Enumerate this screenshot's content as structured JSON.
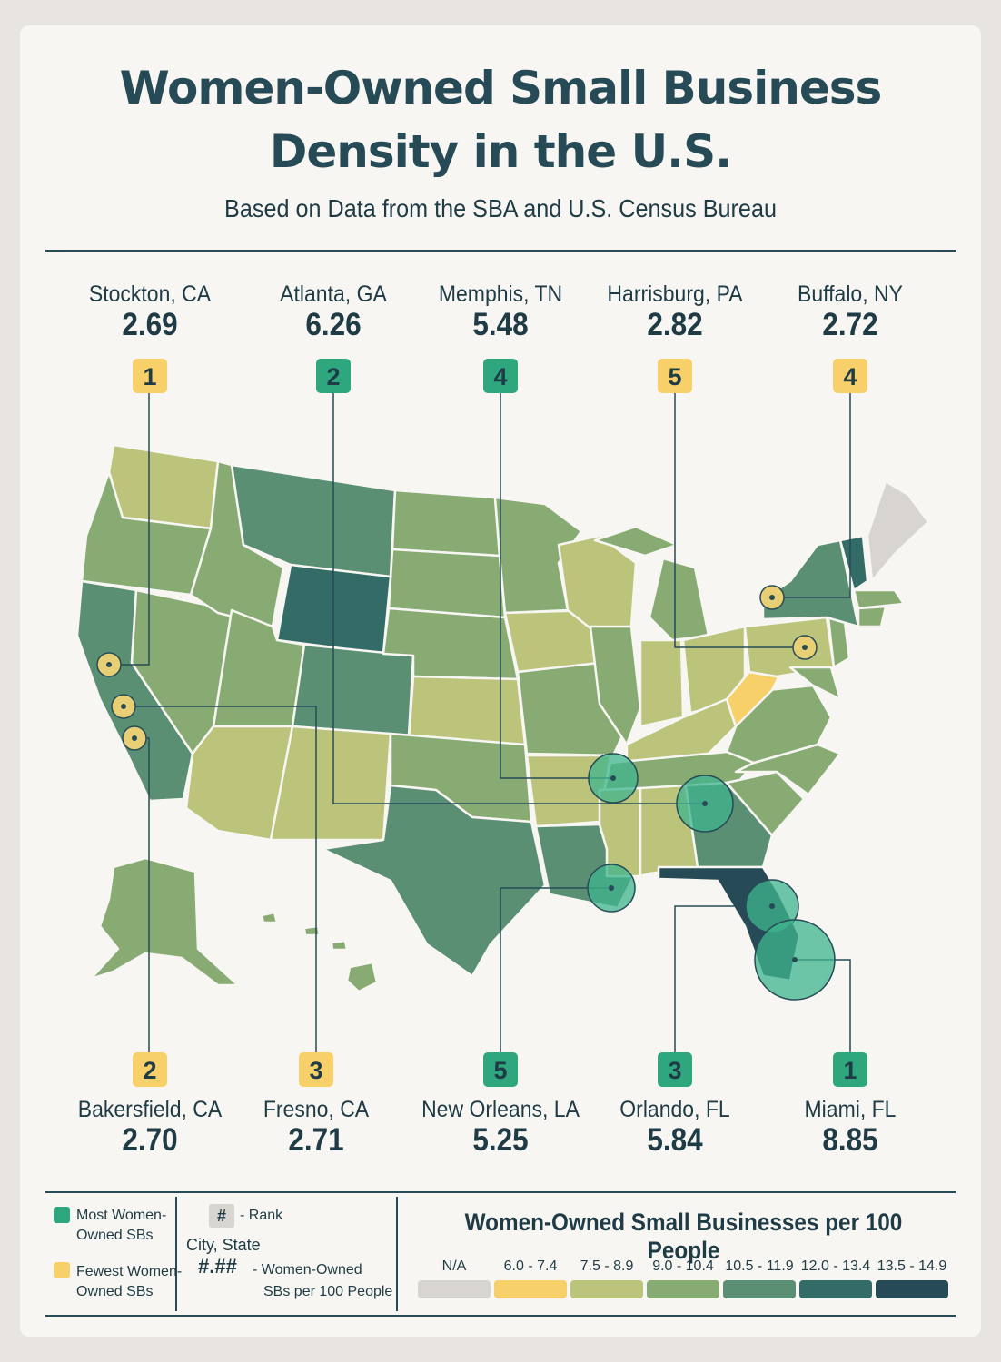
{
  "header": {
    "title_line1": "Women-Owned Small Business",
    "title_line2": "Density in the U.S.",
    "subtitle": "Based on Data from the SBA and U.S. Census Bureau"
  },
  "colors": {
    "na": "#d8d5d1",
    "c6_0": "#f7d06a",
    "c7_5": "#bcc37a",
    "c9_0": "#88ab74",
    "c10_5": "#5a8f74",
    "c12_0": "#336b66",
    "c13_5": "#264b56",
    "most": "#2fa77e",
    "fewest": "#f7d06a"
  },
  "top_cities": [
    {
      "name": "Stockton, CA",
      "value": "2.69",
      "rank": "1",
      "group": "fewest"
    },
    {
      "name": "Atlanta, GA",
      "value": "6.26",
      "rank": "2",
      "group": "most"
    },
    {
      "name": "Memphis, TN",
      "value": "5.48",
      "rank": "4",
      "group": "most"
    },
    {
      "name": "Harrisburg, PA",
      "value": "2.82",
      "rank": "5",
      "group": "fewest"
    },
    {
      "name": "Buffalo, NY",
      "value": "2.72",
      "rank": "4",
      "group": "fewest"
    }
  ],
  "bottom_cities": [
    {
      "name": "Bakersfield, CA",
      "value": "2.70",
      "rank": "2",
      "group": "fewest"
    },
    {
      "name": "Fresno, CA",
      "value": "2.71",
      "rank": "3",
      "group": "fewest"
    },
    {
      "name": "New Orleans, LA",
      "value": "5.25",
      "rank": "5",
      "group": "most"
    },
    {
      "name": "Orlando, FL",
      "value": "5.84",
      "rank": "3",
      "group": "most"
    },
    {
      "name": "Miami, FL",
      "value": "8.85",
      "rank": "1",
      "group": "most"
    }
  ],
  "legend": {
    "most_label_1": "Most Women-",
    "most_label_2": "Owned SBs",
    "fewest_label_1": "Fewest Women-",
    "fewest_label_2": "Owned SBs",
    "rank_symbol": "#",
    "rank_text": "- Rank",
    "city_state": "City, State",
    "value_symbol": "#.##",
    "value_text_1": "- Women-Owned",
    "value_text_2": "SBs per 100 People"
  },
  "scale": {
    "title": "Women-Owned Small Businesses per 100 People",
    "bins": [
      {
        "label": "N/A",
        "color": "#d8d5d1"
      },
      {
        "label": "6.0 - 7.4",
        "color": "#f7d06a"
      },
      {
        "label": "7.5 - 8.9",
        "color": "#bcc37a"
      },
      {
        "label": "9.0 - 10.4",
        "color": "#88ab74"
      },
      {
        "label": "10.5 - 11.9",
        "color": "#5a8f74"
      },
      {
        "label": "12.0 - 13.4",
        "color": "#336b66"
      },
      {
        "label": "13.5 - 14.9",
        "color": "#264b56"
      }
    ]
  }
}
